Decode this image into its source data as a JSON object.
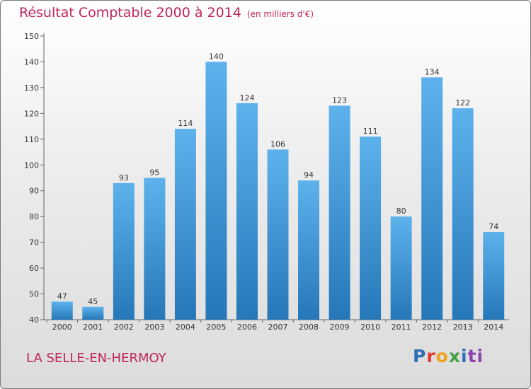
{
  "header": {
    "title": "Résultat Comptable 2000 à 2014",
    "unit": "(en milliers d'€)"
  },
  "footer": {
    "town": "LA SELLE-EN-HERMOY",
    "logo_letters": [
      "P",
      "r",
      "o",
      "x",
      "i",
      "ti"
    ]
  },
  "colors": {
    "bar_top": "#5db2ec",
    "bar_bottom": "#2677b8",
    "title": "#c0245a"
  },
  "chart_data": {
    "type": "bar",
    "title": "Résultat Comptable 2000 à 2014",
    "subtitle": "(en milliers d'€)",
    "categories": [
      "2000",
      "2001",
      "2002",
      "2003",
      "2004",
      "2005",
      "2006",
      "2007",
      "2008",
      "2009",
      "2010",
      "2011",
      "2012",
      "2013",
      "2014"
    ],
    "values": [
      47,
      45,
      93,
      95,
      114,
      140,
      124,
      106,
      94,
      123,
      111,
      80,
      134,
      122,
      74
    ],
    "ylim": [
      40,
      150
    ],
    "yticks": [
      40,
      50,
      60,
      70,
      80,
      90,
      100,
      110,
      120,
      130,
      140,
      150
    ],
    "grid": false,
    "legend": "none"
  }
}
